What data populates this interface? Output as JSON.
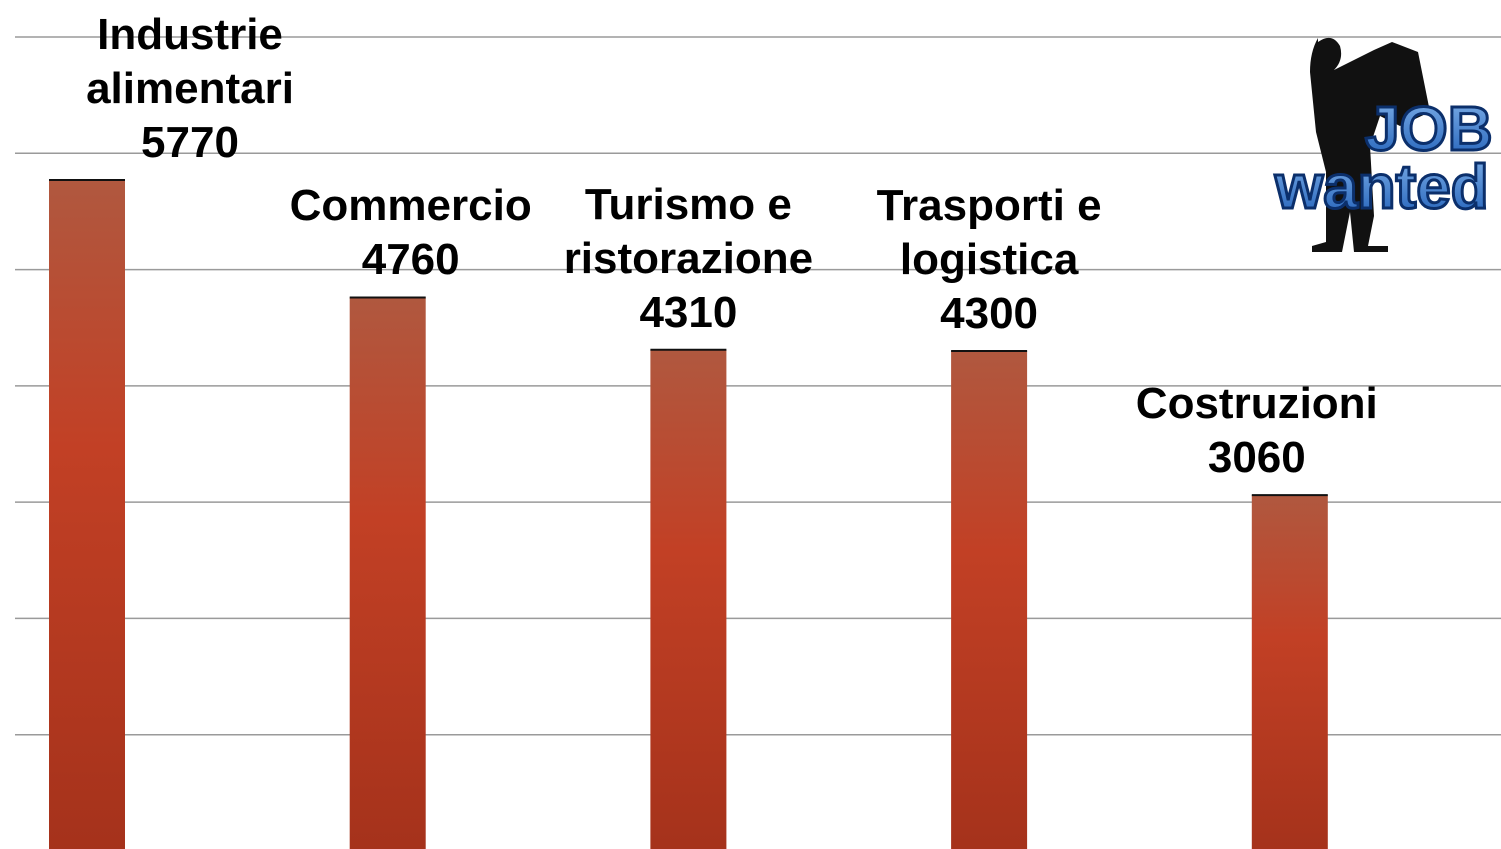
{
  "chart_data": {
    "type": "bar",
    "categories": [
      "Industrie alimentari",
      "Commercio",
      "Turismo e ristorazione",
      "Trasporti e logistica",
      "Costruzioni"
    ],
    "values": [
      5770,
      4760,
      4310,
      4300,
      3060
    ],
    "color": "#bb3f27",
    "ylim": [
      0,
      7000
    ],
    "yticks": [
      1000,
      2000,
      3000,
      4000,
      5000,
      6000,
      7000
    ],
    "grid": true,
    "logo": {
      "line1": "JOB",
      "line2": "wanted"
    }
  }
}
